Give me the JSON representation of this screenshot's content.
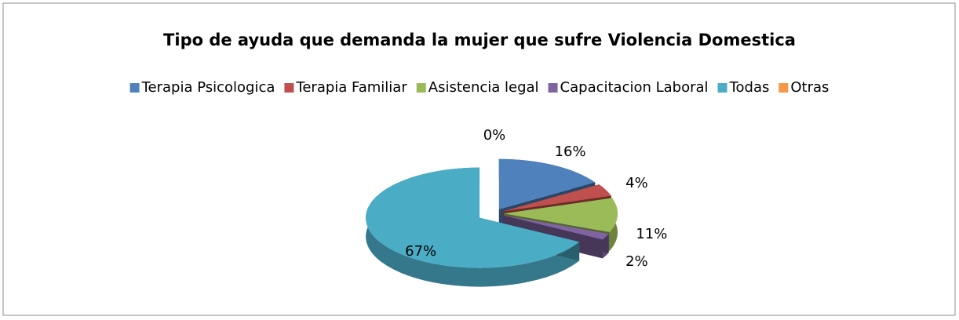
{
  "chart_data": {
    "type": "pie",
    "title": "Tipo de ayuda que demanda la mujer que sufre Violencia Domestica",
    "categories": [
      "Terapia Psicologica",
      "Terapia Familiar",
      "Asistencia legal",
      "Capacitacion Laboral",
      "Todas",
      "Otras"
    ],
    "values": [
      16,
      4,
      11,
      2,
      67,
      0
    ],
    "value_labels": [
      "16%",
      "4%",
      "11%",
      "2%",
      "67%",
      "0%"
    ],
    "colors": [
      "#4f81bd",
      "#c0504d",
      "#9bbb59",
      "#8064a2",
      "#4bacc6",
      "#f79646"
    ],
    "legend": "top"
  }
}
